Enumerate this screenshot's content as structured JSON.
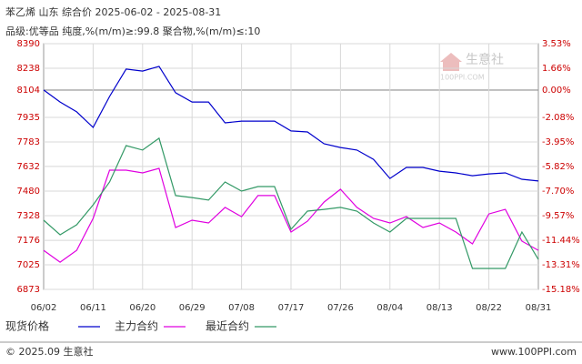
{
  "chart_data": {
    "type": "line",
    "title": "苯乙烯 山东 综合价 2025-06-02 - 2025-08-31",
    "subtitle": "品级:优等品 纯度,%(m/m)≥:99.8 聚合物,%(m/m)≤:10",
    "watermark": [
      "生意社",
      "100PPI.COM"
    ],
    "footer_left": "© 2025.09 生意社",
    "footer_right": "www.100PPI.com",
    "categories": [
      "06/02",
      null,
      null,
      "06/11",
      null,
      null,
      "06/20",
      null,
      null,
      "06/29",
      null,
      null,
      "07/08",
      null,
      null,
      "07/17",
      null,
      null,
      "07/26",
      null,
      null,
      "08/04",
      null,
      null,
      "08/13",
      null,
      null,
      "08/22",
      null,
      null,
      "08/31"
    ],
    "ylim": [
      6873,
      8390
    ],
    "yticks": [
      6873,
      7025,
      7176,
      7328,
      7480,
      7632,
      7783,
      7935,
      8104,
      8238,
      8390
    ],
    "y2lim": [
      -15.18,
      3.53
    ],
    "y2ticks": [
      {
        "value": -15.18,
        "label": "-15.18%"
      },
      {
        "value": -13.31,
        "label": "-13.31%"
      },
      {
        "value": -11.44,
        "label": "-11.44%"
      },
      {
        "value": -9.57,
        "label": "-9.57%"
      },
      {
        "value": -7.7,
        "label": "-7.70%"
      },
      {
        "value": -5.82,
        "label": "-5.82%"
      },
      {
        "value": -3.95,
        "label": "-3.95%"
      },
      {
        "value": -2.08,
        "label": "-2.08%"
      },
      {
        "value": 0,
        "label": "0.00%"
      },
      {
        "value": 1.66,
        "label": "1.66%"
      },
      {
        "value": 3.53,
        "label": "3.53%"
      }
    ],
    "grid": true,
    "series": [
      {
        "name": "现货价格",
        "color": "#0000cc",
        "values": [
          8104,
          8030,
          7969,
          7873,
          8064,
          8233,
          8221,
          8250,
          8087,
          8030,
          8030,
          7901,
          7912,
          7912,
          7912,
          7851,
          7845,
          7772,
          7749,
          7733,
          7676,
          7558,
          7626,
          7626,
          7603,
          7592,
          7575,
          7586,
          7592,
          7553,
          7542
        ]
      },
      {
        "name": "主力合约",
        "color": "#e000e0",
        "values": [
          7114,
          7041,
          7114,
          7311,
          7609,
          7609,
          7592,
          7620,
          7255,
          7300,
          7283,
          7379,
          7322,
          7452,
          7452,
          7227,
          7294,
          7412,
          7491,
          7379,
          7311,
          7283,
          7322,
          7255,
          7283,
          7227,
          7154,
          7339,
          7367,
          7171,
          7114
        ]
      },
      {
        "name": "最近合约",
        "color": "#339966",
        "values": [
          7300,
          7210,
          7272,
          7395,
          7536,
          7761,
          7733,
          7806,
          7452,
          7440,
          7424,
          7536,
          7480,
          7508,
          7508,
          7244,
          7356,
          7367,
          7379,
          7356,
          7283,
          7227,
          7311,
          7311,
          7311,
          7311,
          7002,
          7002,
          7002,
          7227,
          7058
        ]
      }
    ]
  }
}
